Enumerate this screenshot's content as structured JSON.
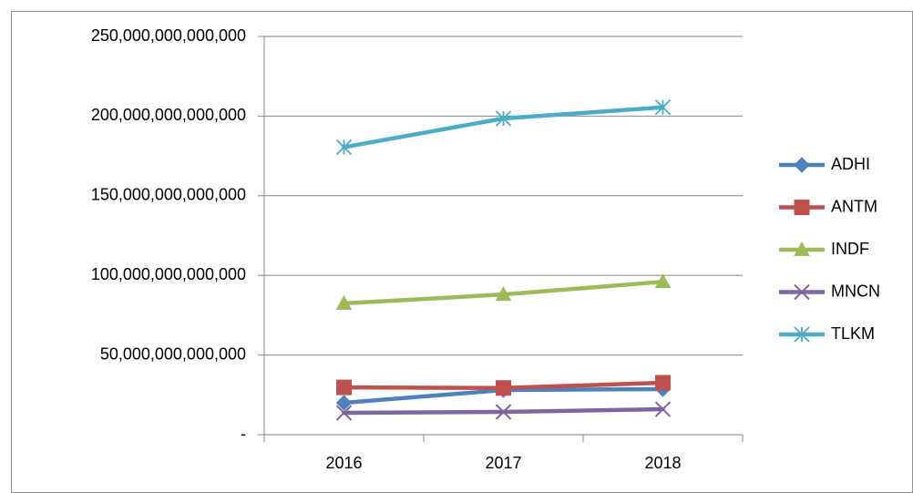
{
  "chart_data": {
    "type": "line",
    "categories": [
      "2016",
      "2017",
      "2018"
    ],
    "series": [
      {
        "name": "ADHI",
        "color": "#4f81bd",
        "marker": "diamond",
        "values": [
          20000000000000,
          28000000000000,
          28600000000000
        ]
      },
      {
        "name": "ANTM",
        "color": "#c0504d",
        "marker": "square",
        "values": [
          29700000000000,
          29300000000000,
          32600000000000
        ]
      },
      {
        "name": "INDF",
        "color": "#9bbb59",
        "marker": "triangle",
        "values": [
          82400000000000,
          88000000000000,
          96000000000000
        ]
      },
      {
        "name": "MNCN",
        "color": "#8064a2",
        "marker": "x",
        "values": [
          13700000000000,
          14300000000000,
          16000000000000
        ]
      },
      {
        "name": "TLKM",
        "color": "#4bacc6",
        "marker": "star",
        "values": [
          180500000000000,
          198500000000000,
          205500000000000
        ]
      }
    ],
    "ylim": [
      0,
      250000000000000
    ],
    "yticks": [
      {
        "value": 0,
        "label": "-"
      },
      {
        "value": 50000000000000,
        "label": "50,000,000,000,000"
      },
      {
        "value": 100000000000000,
        "label": "100,000,000,000,000"
      },
      {
        "value": 150000000000000,
        "label": "150,000,000,000,000"
      },
      {
        "value": 200000000000000,
        "label": "200,000,000,000,000"
      },
      {
        "value": 250000000000000,
        "label": "250,000,000,000,000"
      }
    ],
    "grid": true,
    "legend": "right"
  }
}
